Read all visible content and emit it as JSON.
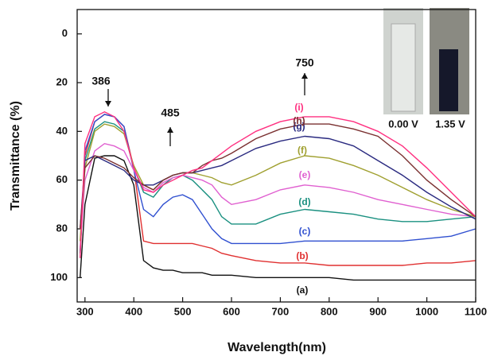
{
  "chart_data": {
    "type": "line",
    "x_label": "Wavelength(nm)",
    "y_label": "Transmittance (%)",
    "x": [
      290,
      300,
      320,
      340,
      360,
      380,
      400,
      420,
      440,
      460,
      480,
      500,
      520,
      540,
      560,
      580,
      600,
      650,
      700,
      750,
      800,
      850,
      900,
      950,
      1000,
      1050,
      1100
    ],
    "series": [
      {
        "name": "(a)",
        "color": "#111111",
        "values": [
          100,
          70,
          51,
          50,
          50,
          52,
          62,
          93,
          96,
          97,
          97,
          98,
          98,
          98,
          99,
          99,
          99,
          100,
          100,
          100,
          100,
          101,
          101,
          101,
          101,
          101,
          101
        ]
      },
      {
        "name": "(b)",
        "color": "#e03030",
        "values": [
          90,
          50,
          36,
          33,
          34,
          38,
          55,
          85,
          86,
          86,
          86,
          86,
          86,
          87,
          88,
          90,
          91,
          93,
          94,
          94,
          95,
          95,
          95,
          95,
          94,
          94,
          93
        ]
      },
      {
        "name": "(c)",
        "color": "#3050d0",
        "values": [
          90,
          48,
          36,
          33,
          34,
          38,
          56,
          72,
          75,
          70,
          67,
          66,
          68,
          74,
          80,
          84,
          86,
          86,
          86,
          85,
          85,
          85,
          85,
          85,
          84,
          83,
          80
        ]
      },
      {
        "name": "(d)",
        "color": "#1a9080",
        "values": [
          90,
          52,
          39,
          36,
          37,
          40,
          55,
          65,
          67,
          62,
          59,
          58,
          60,
          64,
          68,
          75,
          78,
          78,
          74,
          72,
          73,
          74,
          76,
          77,
          77,
          76,
          75
        ]
      },
      {
        "name": "(e)",
        "color": "#e060d0",
        "values": [
          88,
          60,
          48,
          45,
          46,
          48,
          56,
          63,
          65,
          61,
          59,
          58,
          59,
          60,
          62,
          67,
          70,
          68,
          64,
          62,
          63,
          65,
          68,
          70,
          72,
          74,
          75
        ]
      },
      {
        "name": "(f)",
        "color": "#a0a030",
        "values": [
          85,
          55,
          40,
          37,
          38,
          41,
          54,
          62,
          64,
          60,
          58,
          57,
          57,
          58,
          59,
          61,
          62,
          58,
          53,
          50,
          51,
          54,
          58,
          63,
          68,
          72,
          75
        ]
      },
      {
        "name": "(g)",
        "color": "#2a2a80",
        "values": [
          80,
          52,
          50,
          52,
          54,
          56,
          60,
          62,
          62,
          60,
          58,
          57,
          57,
          56,
          55,
          54,
          52,
          47,
          44,
          42,
          43,
          46,
          52,
          58,
          65,
          71,
          76
        ]
      },
      {
        "name": "(h)",
        "color": "#7a3030",
        "values": [
          80,
          55,
          50,
          51,
          53,
          55,
          59,
          62,
          64,
          60,
          58,
          57,
          57,
          54,
          52,
          51,
          49,
          43,
          39,
          37,
          37,
          39,
          42,
          50,
          60,
          68,
          75
        ]
      },
      {
        "name": "(i)",
        "color": "#ff3080",
        "values": [
          92,
          45,
          34,
          32,
          34,
          40,
          55,
          64,
          65,
          62,
          60,
          58,
          56,
          55,
          52,
          49,
          46,
          40,
          36,
          34,
          34,
          36,
          40,
          46,
          55,
          65,
          75
        ]
      }
    ],
    "xlim": [
      284,
      1100
    ],
    "xticks": [
      300,
      400,
      500,
      600,
      700,
      800,
      900,
      1000,
      1100
    ],
    "ylim": [
      -10,
      110
    ],
    "yticks": [
      0,
      20,
      40,
      60,
      80,
      100
    ],
    "y_inverted": true,
    "annotations": [
      "386",
      "485",
      "750"
    ],
    "inset_labels": [
      "0.00 V",
      "1.35 V"
    ]
  }
}
